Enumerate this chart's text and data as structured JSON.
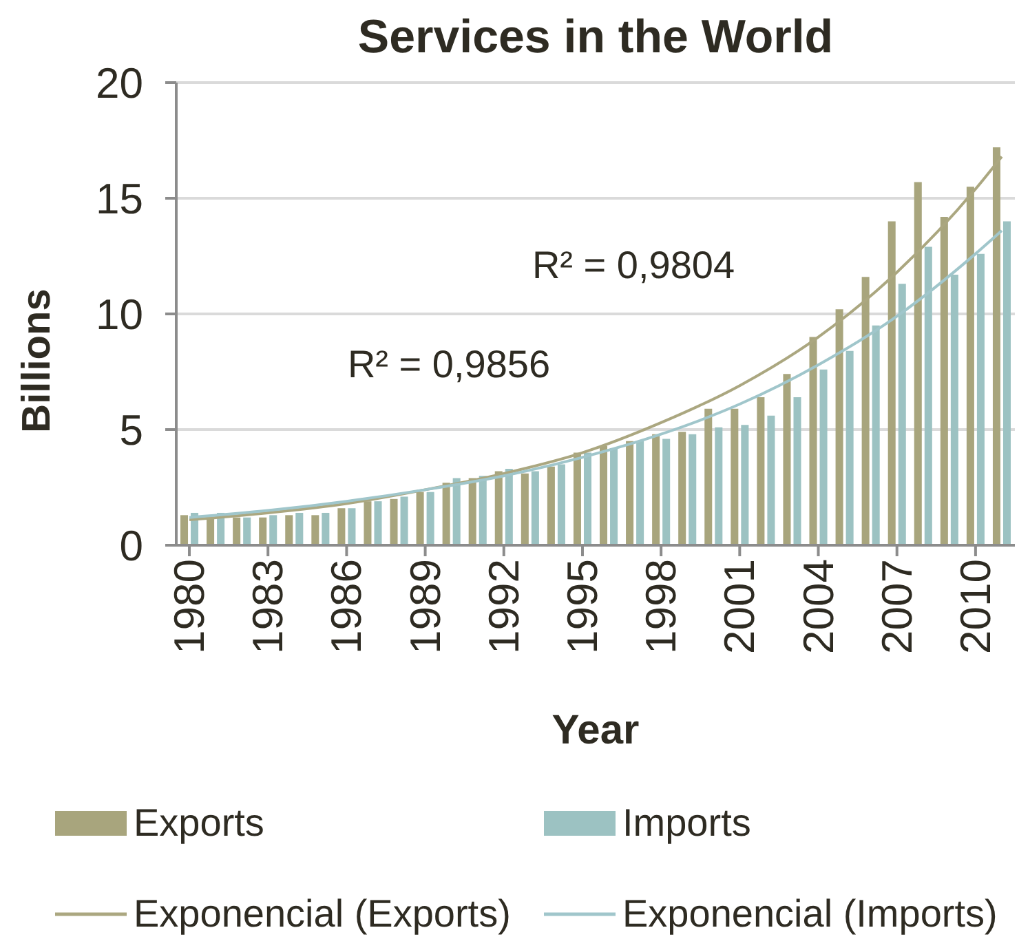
{
  "chart_data": {
    "type": "bar",
    "title": "Services in the World",
    "xlabel": "Year",
    "ylabel": "Billions",
    "x": [
      1980,
      1981,
      1982,
      1983,
      1984,
      1985,
      1986,
      1987,
      1988,
      1989,
      1990,
      1991,
      1992,
      1993,
      1994,
      1995,
      1996,
      1997,
      1998,
      1999,
      2000,
      2001,
      2002,
      2003,
      2004,
      2005,
      2006,
      2007,
      2008,
      2009,
      2010,
      2011
    ],
    "xlim": [
      1979.5,
      2011.5
    ],
    "xticks": [
      1980,
      1983,
      1986,
      1989,
      1992,
      1995,
      1998,
      2001,
      2004,
      2007,
      2010
    ],
    "ylim": [
      0,
      20
    ],
    "yticks": [
      0,
      5,
      10,
      15,
      20
    ],
    "grid": "y",
    "legend": "bottom",
    "series": [
      {
        "name": "Exports",
        "color": "#a8a57d",
        "values": [
          1.3,
          1.2,
          1.2,
          1.2,
          1.3,
          1.3,
          1.6,
          1.9,
          2.0,
          2.3,
          2.7,
          2.9,
          3.2,
          3.1,
          3.4,
          4.0,
          4.3,
          4.5,
          4.8,
          4.9,
          5.9,
          5.9,
          6.4,
          7.4,
          9.0,
          10.2,
          11.6,
          14.0,
          15.7,
          14.2,
          15.5,
          17.2
        ]
      },
      {
        "name": "Imports",
        "color": "#9cc2c2",
        "values": [
          1.4,
          1.4,
          1.2,
          1.3,
          1.4,
          1.4,
          1.6,
          1.9,
          2.1,
          2.3,
          2.9,
          3.0,
          3.3,
          3.2,
          3.5,
          4.0,
          4.2,
          4.5,
          4.6,
          4.8,
          5.1,
          5.2,
          5.6,
          6.4,
          7.6,
          8.4,
          9.5,
          11.3,
          12.9,
          11.7,
          12.6,
          14.0
        ]
      },
      {
        "name": "Exponencial (Exports)",
        "type": "line",
        "color": "#aba780",
        "x": [
          1980,
          1983,
          1986,
          1989,
          1992,
          1995,
          1998,
          2001,
          2004,
          2007,
          2010,
          2011
        ],
        "values": [
          1.1,
          1.4,
          1.8,
          2.4,
          3.1,
          4.0,
          5.3,
          6.9,
          9.0,
          11.8,
          15.4,
          16.8
        ]
      },
      {
        "name": "Exponencial (Imports)",
        "type": "line",
        "color": "#a0c6cb",
        "x": [
          1980,
          1983,
          1986,
          1989,
          1992,
          1995,
          1998,
          2001,
          2004,
          2007,
          2010,
          2011
        ],
        "values": [
          1.2,
          1.5,
          1.9,
          2.4,
          3.0,
          3.8,
          4.8,
          6.1,
          7.8,
          9.9,
          12.6,
          13.6
        ]
      }
    ],
    "annotations": [
      "R² = 0,9804",
      "R² = 0,9856"
    ]
  }
}
